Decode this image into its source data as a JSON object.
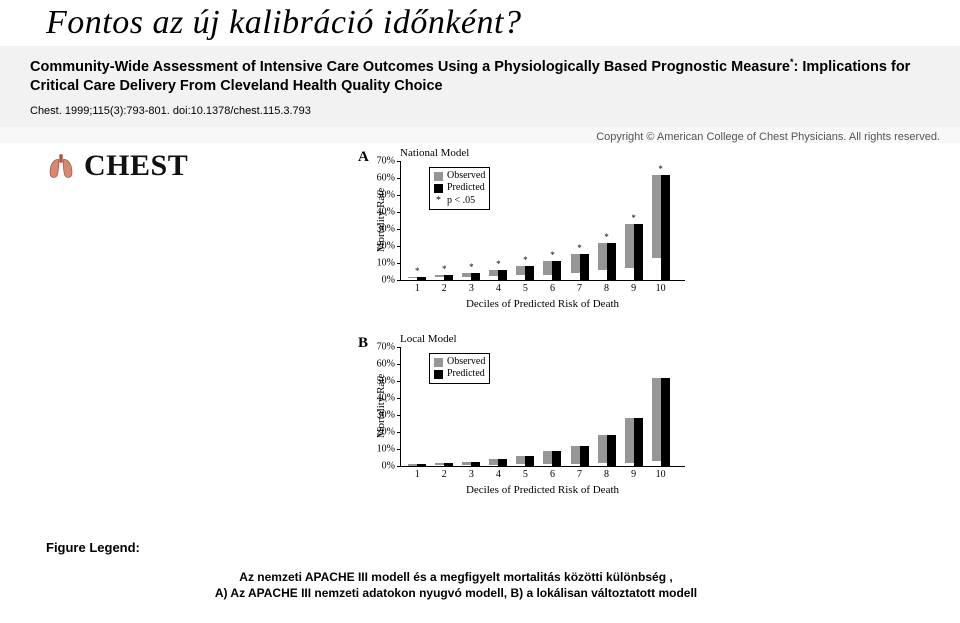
{
  "title": "Fontos az új kalibráció időnként?",
  "header": {
    "text_before": "Community-Wide Assessment of Intensive Care Outcomes Using a Physiologically Based Prognostic Measure",
    "sup": "*",
    "text_after": ": Implications for Critical Care Delivery From Cleveland Health Quality Choice"
  },
  "citation": "Chest. 1999;115(3):793-801. doi:10.1378/chest.115.3.793",
  "copyright": "Copyright © American College of Chest Physicians. All rights reserved.",
  "logo_text": "CHEST",
  "axes": {
    "y_label": "Mortality Rate",
    "x_label": "Deciles of Predicted Risk of Death",
    "y_max_pct": 70,
    "y_ticks": [
      0,
      10,
      20,
      30,
      40,
      50,
      60,
      70
    ],
    "x_ticks": [
      1,
      2,
      3,
      4,
      5,
      6,
      7,
      8,
      9,
      10
    ]
  },
  "legend": {
    "observed": "Observed",
    "predicted": "Predicted",
    "sig": "p < .05",
    "obs_color": "#969696",
    "pred_color": "#000000"
  },
  "chartA": {
    "panel": "A",
    "title": "National Model",
    "show_sig": true,
    "observed": [
      1,
      1.5,
      2,
      3.5,
      5,
      8,
      11,
      16,
      26,
      49
    ],
    "predicted": [
      2,
      3,
      4,
      6,
      8,
      11,
      15,
      22,
      33,
      62
    ],
    "sig_decile": [
      1,
      2,
      3,
      4,
      5,
      6,
      7,
      8,
      9,
      10
    ]
  },
  "chartB": {
    "panel": "B",
    "title": "Local Model",
    "show_sig": false,
    "observed": [
      1,
      1.5,
      2,
      3.5,
      5,
      8,
      11,
      16,
      26,
      49
    ],
    "predicted": [
      1,
      1.8,
      2.5,
      4,
      6,
      9,
      12,
      18,
      28,
      52
    ],
    "sig_decile": []
  },
  "colors": {
    "chart_border": "#000000",
    "background": "#ffffff",
    "header_bg": "#f2f2f2"
  },
  "figure_legend": {
    "title": "Figure Legend:",
    "line1": "Az nemzeti APACHE III modell és a megfigyelt mortalitás közötti különbség ,",
    "line2": "A) Az APACHE III nemzeti adatokon nyugvó modell, B) a lokálisan változtatott modell"
  }
}
